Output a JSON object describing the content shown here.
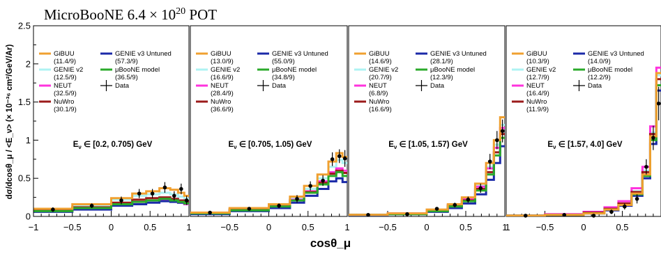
{
  "chart_data": {
    "type": "line",
    "title": "MicroBooNE 6.4 × 10²⁰ POT",
    "title_parts": {
      "main": "MicroBooNE 6.4 × 10",
      "superscript": "20",
      "suffix": " POT"
    },
    "ylabel": "dσ/dcosθ_μ / <E_ν> (× 10⁻³⁶ cm²/GeV/Ar)",
    "xlabel": "cosθ_μ",
    "ylim": [
      0,
      2.5
    ],
    "yticks": [
      "0",
      "0.5",
      "1",
      "1.5",
      "2",
      "2.5"
    ],
    "grid": false,
    "legend_placement": "top-left of each panel",
    "series_meta": [
      {
        "key": "gibuu",
        "name": "GiBUU",
        "color": "#f0a030"
      },
      {
        "key": "genie2",
        "name": "GENIE v2",
        "color": "#aef3f3"
      },
      {
        "key": "neut",
        "name": "NEUT",
        "color": "#ff33dd"
      },
      {
        "key": "nuwro",
        "name": "NuWro",
        "color": "#9b1b1b"
      },
      {
        "key": "genie3",
        "name": "GENIE v3 Untuned",
        "color": "#1b2aa8"
      },
      {
        "key": "ubmodel",
        "name": "μBooNE model",
        "color": "#2aaa2a"
      },
      {
        "key": "data",
        "name": "Data",
        "color": "#000000"
      }
    ],
    "panels": [
      {
        "label": "E_ν ∈ [0.2, 0.705) GeV",
        "xlim": [
          -1,
          1
        ],
        "xticks": [
          "−1",
          "−0.5",
          "0",
          "0.5",
          "1"
        ],
        "edges": [
          -1,
          -0.5,
          0,
          0.27,
          0.45,
          0.62,
          0.76,
          0.86,
          0.94,
          1
        ],
        "chi2": {
          "gibuu": "(11.4/9)",
          "genie2": "(12.5/9)",
          "neut": "(32.5/9)",
          "nuwro": "(30.1/9)",
          "genie3": "(57.3/9)",
          "ubmodel": "(36.5/9)"
        },
        "series": {
          "gibuu": [
            0.1,
            0.16,
            0.24,
            0.3,
            0.33,
            0.37,
            0.35,
            0.31,
            0.27
          ],
          "genie2": [
            0.09,
            0.14,
            0.22,
            0.27,
            0.29,
            0.31,
            0.29,
            0.26,
            0.23
          ],
          "neut": [
            0.07,
            0.11,
            0.16,
            0.19,
            0.21,
            0.22,
            0.2,
            0.18,
            0.16
          ],
          "nuwro": [
            0.08,
            0.12,
            0.18,
            0.22,
            0.24,
            0.25,
            0.23,
            0.21,
            0.19
          ],
          "genie3": [
            0.06,
            0.09,
            0.14,
            0.16,
            0.18,
            0.2,
            0.19,
            0.18,
            0.17
          ],
          "ubmodel": [
            0.07,
            0.11,
            0.16,
            0.19,
            0.21,
            0.23,
            0.21,
            0.19,
            0.17
          ]
        },
        "data": {
          "x": [
            -0.75,
            -0.25,
            0.13,
            0.36,
            0.53,
            0.69,
            0.81,
            0.9,
            0.97
          ],
          "y": [
            0.09,
            0.14,
            0.21,
            0.3,
            0.3,
            0.38,
            0.27,
            0.36,
            0.21
          ],
          "err": [
            0.03,
            0.03,
            0.05,
            0.06,
            0.06,
            0.07,
            0.06,
            0.07,
            0.06
          ]
        }
      },
      {
        "label": "E_ν ∈ [0.705, 1.05) GeV",
        "xlim": [
          -1,
          1
        ],
        "xticks": [
          "−0.5",
          "0",
          "0.5",
          "1"
        ],
        "edges": [
          -1,
          -0.5,
          0,
          0.27,
          0.45,
          0.62,
          0.76,
          0.86,
          0.94,
          1
        ],
        "chi2": {
          "gibuu": "(13.0/9)",
          "genie2": "(16.6/9)",
          "neut": "(28.4/9)",
          "nuwro": "(36.6/9)",
          "genie3": "(55.0/9)",
          "ubmodel": "(34.8/9)"
        },
        "series": {
          "gibuu": [
            0.05,
            0.11,
            0.16,
            0.26,
            0.4,
            0.55,
            0.72,
            0.83,
            0.78
          ],
          "genie2": [
            0.04,
            0.1,
            0.15,
            0.24,
            0.36,
            0.5,
            0.65,
            0.74,
            0.7
          ],
          "neut": [
            0.04,
            0.09,
            0.14,
            0.22,
            0.33,
            0.46,
            0.58,
            0.63,
            0.6
          ],
          "nuwro": [
            0.04,
            0.09,
            0.13,
            0.21,
            0.32,
            0.44,
            0.56,
            0.6,
            0.57
          ],
          "genie3": [
            0.03,
            0.07,
            0.11,
            0.18,
            0.27,
            0.36,
            0.46,
            0.5,
            0.45
          ],
          "ubmodel": [
            0.04,
            0.08,
            0.13,
            0.21,
            0.31,
            0.42,
            0.53,
            0.58,
            0.53
          ]
        },
        "data": {
          "x": [
            -0.75,
            -0.25,
            0.13,
            0.36,
            0.53,
            0.69,
            0.81,
            0.9,
            0.97
          ],
          "y": [
            0.05,
            0.1,
            0.14,
            0.23,
            0.4,
            0.47,
            0.75,
            0.79,
            0.76
          ],
          "err": [
            0.02,
            0.02,
            0.03,
            0.05,
            0.06,
            0.07,
            0.09,
            0.09,
            0.11
          ]
        }
      },
      {
        "label": "E_ν ∈ [1.05, 1.57) GeV",
        "xlim": [
          -1,
          1
        ],
        "xticks": [
          "−0.5",
          "0",
          "0.5",
          "1"
        ],
        "edges": [
          -1,
          -0.5,
          0,
          0.27,
          0.45,
          0.62,
          0.76,
          0.86,
          0.94,
          1
        ],
        "chi2": {
          "gibuu": "(14.6/9)",
          "genie2": "(20.7/9)",
          "neut": "(6.8/9)",
          "nuwro": "(16.6/9)",
          "genie3": "(28.1/9)",
          "ubmodel": "(12.3/9)"
        },
        "series": {
          "gibuu": [
            0.02,
            0.04,
            0.09,
            0.16,
            0.25,
            0.43,
            0.7,
            1.0,
            1.3
          ],
          "genie2": [
            0.02,
            0.04,
            0.08,
            0.15,
            0.23,
            0.4,
            0.65,
            0.94,
            1.2
          ],
          "neut": [
            0.02,
            0.04,
            0.08,
            0.15,
            0.23,
            0.39,
            0.63,
            0.9,
            1.16
          ],
          "nuwro": [
            0.02,
            0.03,
            0.07,
            0.14,
            0.21,
            0.36,
            0.58,
            0.84,
            1.08
          ],
          "genie3": [
            0.01,
            0.03,
            0.06,
            0.11,
            0.17,
            0.29,
            0.48,
            0.7,
            0.92
          ],
          "ubmodel": [
            0.02,
            0.03,
            0.07,
            0.13,
            0.2,
            0.34,
            0.55,
            0.8,
            1.03
          ]
        },
        "data": {
          "x": [
            -0.75,
            -0.25,
            0.13,
            0.36,
            0.53,
            0.69,
            0.81,
            0.9,
            0.97
          ],
          "y": [
            0.02,
            0.03,
            0.1,
            0.15,
            0.22,
            0.37,
            0.72,
            1.0,
            1.12
          ],
          "err": [
            0.01,
            0.01,
            0.02,
            0.03,
            0.04,
            0.06,
            0.1,
            0.12,
            0.15
          ]
        }
      },
      {
        "label": "E_ν ∈ [1.57, 4.0] GeV",
        "xlim": [
          -1,
          1
        ],
        "xticks": [
          "1",
          "−0.5",
          "0",
          "0.5"
        ],
        "edges": [
          -1,
          -0.5,
          0,
          0.27,
          0.45,
          0.62,
          0.76,
          0.86,
          0.94,
          1
        ],
        "chi2": {
          "gibuu": "(10.3/9)",
          "genie2": "(12.7/9)",
          "neut": "(16.4/9)",
          "nuwro": "(11.9/9)",
          "genie3": "(14.0/9)",
          "ubmodel": "(12.2/9)"
        },
        "series": {
          "gibuu": [
            0.01,
            0.02,
            0.04,
            0.09,
            0.15,
            0.3,
            0.55,
            1.05,
            1.88
          ],
          "genie2": [
            0.01,
            0.02,
            0.05,
            0.1,
            0.17,
            0.33,
            0.6,
            1.1,
            1.85
          ],
          "neut": [
            0.01,
            0.03,
            0.06,
            0.12,
            0.2,
            0.37,
            0.65,
            1.18,
            1.95
          ],
          "nuwro": [
            0.01,
            0.02,
            0.05,
            0.1,
            0.17,
            0.32,
            0.58,
            1.08,
            1.8
          ],
          "genie3": [
            0.01,
            0.02,
            0.04,
            0.08,
            0.14,
            0.27,
            0.5,
            0.95,
            1.65
          ],
          "ubmodel": [
            0.01,
            0.02,
            0.04,
            0.09,
            0.15,
            0.29,
            0.53,
            1.0,
            1.72
          ]
        },
        "data": {
          "x": [
            -0.75,
            -0.25,
            0.13,
            0.36,
            0.53,
            0.69,
            0.81,
            0.9,
            0.97
          ],
          "y": [
            0.01,
            0.02,
            0.01,
            0.06,
            0.13,
            0.23,
            0.65,
            1.03,
            1.48
          ],
          "err": [
            0.01,
            0.01,
            0.02,
            0.03,
            0.04,
            0.06,
            0.1,
            0.16,
            0.22
          ]
        }
      }
    ]
  }
}
